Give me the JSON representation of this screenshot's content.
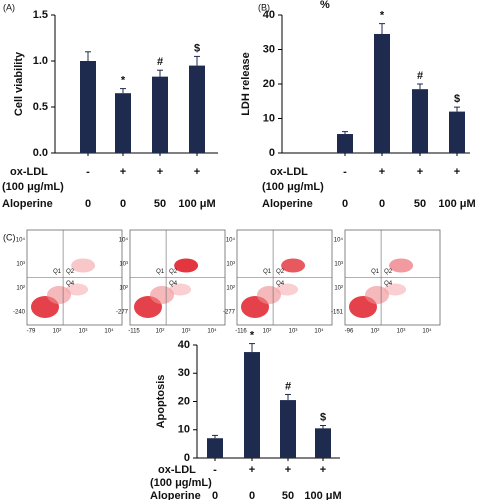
{
  "chart_data": [
    {
      "type": "bar",
      "panel": "(A)",
      "ylabel": "Cell viability",
      "color": "#1f2a4f",
      "categories": [
        null,
        null,
        null,
        null
      ],
      "values": [
        1.0,
        0.65,
        0.83,
        0.95
      ],
      "errors": [
        0.1,
        0.05,
        0.07,
        0.1
      ],
      "annotations": [
        null,
        "*",
        "#",
        "$"
      ],
      "ylim": [
        0,
        1.5
      ],
      "yticks": [
        {
          "value": 0,
          "label": "0.0"
        },
        {
          "value": 0.5,
          "label": "0.5"
        },
        {
          "value": 1,
          "label": "1.0"
        },
        {
          "value": 1.5,
          "label": "1.5"
        }
      ],
      "ox_ldl": {
        "label": "ox-LDL",
        "sublabel": "(100 μg/mL)",
        "values": [
          "-",
          "+",
          "+",
          "+"
        ]
      },
      "aloperine": {
        "label": "Aloperine",
        "values": [
          "0",
          "0",
          "50",
          "100 μM"
        ]
      }
    },
    {
      "type": "bar",
      "panel": "(B)",
      "ylabel": "LDH release",
      "unit": "%",
      "color": "#1f2a4f",
      "categories": [
        null,
        null,
        null,
        null
      ],
      "values": [
        5.5,
        34.5,
        18.5,
        12
      ],
      "errors": [
        0.7,
        3,
        1.5,
        1.3
      ],
      "annotations": [
        null,
        "*",
        "#",
        "$"
      ],
      "ylim": [
        0,
        40
      ],
      "yticks": [
        0,
        10,
        20,
        30,
        40
      ],
      "ox_ldl": {
        "label": "ox-LDL",
        "sublabel": "(100 μg/mL)",
        "values": [
          "-",
          "+",
          "+",
          "+"
        ]
      },
      "aloperine": {
        "label": "Aloperine",
        "values": [
          "0",
          "0",
          "50",
          "100 μM"
        ]
      }
    },
    {
      "type": "bar",
      "panel": "(C)",
      "ylabel": "Apoptosis",
      "color": "#1f2a4f",
      "categories": [
        null,
        null,
        null,
        null
      ],
      "values": [
        7,
        37.5,
        20.5,
        10.5
      ],
      "errors": [
        1,
        3,
        2,
        1
      ],
      "annotations": [
        null,
        "*",
        "#",
        "$"
      ],
      "ylim": [
        0,
        40
      ],
      "yticks": [
        0,
        10,
        20,
        30,
        40
      ],
      "ox_ldl": {
        "label": "ox-LDL",
        "sublabel": "(100 μg/mL)",
        "values": [
          "-",
          "+",
          "+",
          "+"
        ]
      },
      "aloperine": {
        "label": "Aloperine",
        "values": [
          "0",
          "0",
          "50",
          "100 μM"
        ]
      }
    }
  ],
  "flow_panels": [
    {
      "y_labels": [
        "10⁴",
        "10³",
        "10²",
        "-240"
      ],
      "x_labels": [
        "-79",
        "10²",
        "10³",
        "10⁴"
      ],
      "quadrants": [
        "Q1",
        "Q2",
        "Q4"
      ]
    },
    {
      "y_labels": [
        "10⁴",
        "10³",
        "10²",
        "-277"
      ],
      "x_labels": [
        "-115",
        "10²",
        "10³",
        "10⁴"
      ],
      "quadrants": [
        "Q1",
        "Q2",
        "Q4"
      ]
    },
    {
      "y_labels": [
        "10⁴",
        "10³",
        "10²",
        "-277"
      ],
      "x_labels": [
        "-116",
        "10²",
        "10³",
        "10⁴"
      ],
      "quadrants": [
        "Q1",
        "Q2",
        "Q4"
      ]
    },
    {
      "y_labels": [
        "10⁴",
        "10³",
        "10²",
        "-151"
      ],
      "x_labels": [
        "-96",
        "10²",
        "10³",
        "10⁴"
      ],
      "quadrants": [
        "Q1",
        "Q2",
        "Q4"
      ]
    }
  ]
}
